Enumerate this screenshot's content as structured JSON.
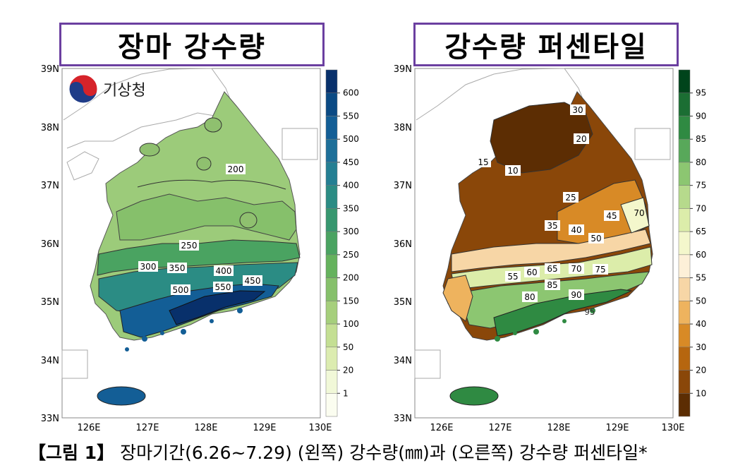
{
  "left_map": {
    "title": "장마 강수량",
    "logo_text": "기상청",
    "lat_labels": [
      "39N",
      "38N",
      "37N",
      "36N",
      "35N",
      "34N",
      "33N"
    ],
    "lon_labels": [
      "126E",
      "127E",
      "128E",
      "129E",
      "130E"
    ],
    "legend_labels": [
      "600",
      "550",
      "500",
      "450",
      "400",
      "350",
      "300",
      "250",
      "200",
      "150",
      "100",
      "50",
      "20",
      "1"
    ],
    "legend_colors": [
      "#08306b",
      "#0b4a84",
      "#135e96",
      "#1d6f99",
      "#247f93",
      "#2b8c84",
      "#37976f",
      "#4aa361",
      "#65b25d",
      "#86c06b",
      "#a6cf7c",
      "#c4df93",
      "#dcecb0",
      "#f1f8d8",
      "#fbfdf0"
    ],
    "contour_labels": [
      "200",
      "250",
      "300",
      "350",
      "400",
      "450",
      "500",
      "550"
    ]
  },
  "right_map": {
    "title": "강수량 퍼센타일",
    "lat_labels": [
      "39N",
      "38N",
      "37N",
      "36N",
      "35N",
      "34N",
      "33N"
    ],
    "lon_labels": [
      "126E",
      "127E",
      "128E",
      "129E",
      "130E"
    ],
    "legend_labels": [
      "95",
      "90",
      "85",
      "80",
      "75",
      "70",
      "65",
      "60",
      "55",
      "50",
      "40",
      "30",
      "20",
      "10"
    ],
    "legend_colors": [
      "#00441b",
      "#1b6e33",
      "#2f8a42",
      "#58a85a",
      "#8cc671",
      "#b6da8c",
      "#dcedaa",
      "#f4f7cc",
      "#fdf0d8",
      "#f7d6a6",
      "#eeb35e",
      "#d88a26",
      "#b6660f",
      "#8a4709",
      "#5c2d03"
    ],
    "contour_labels": [
      "10",
      "15",
      "20",
      "25",
      "30",
      "35",
      "40",
      "45",
      "50",
      "55",
      "60",
      "65",
      "70",
      "75",
      "80",
      "85",
      "90",
      "95"
    ]
  },
  "caption": {
    "prefix": "【그림 1】",
    "text": "장마기간(6.26~7.29) (왼쪽) 강수량(㎜)과 (오른쪽) 강수량 퍼센타일*"
  }
}
